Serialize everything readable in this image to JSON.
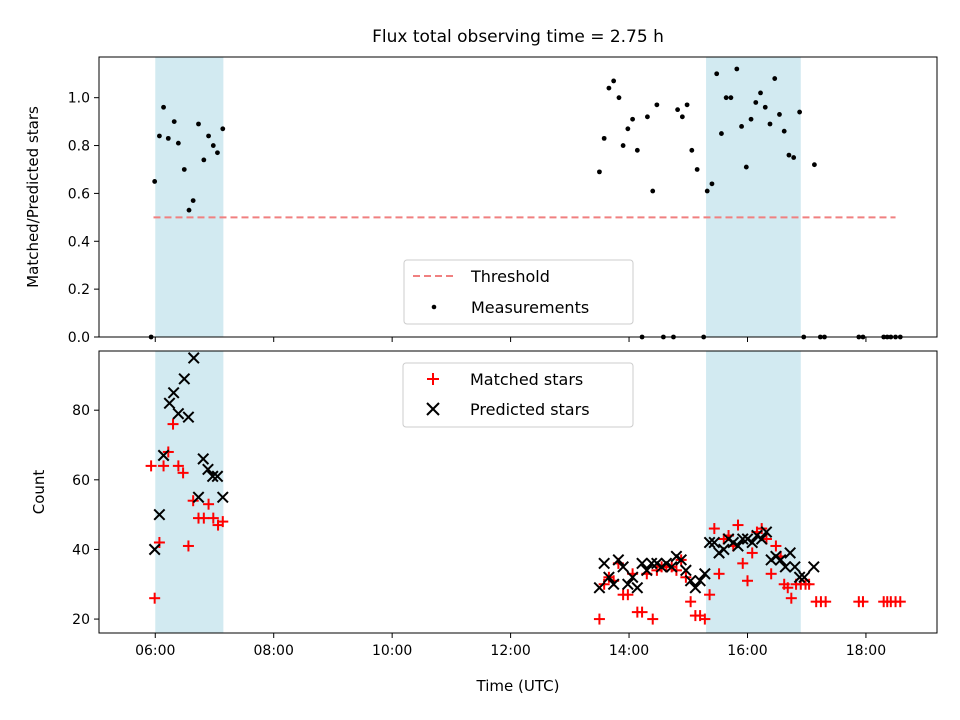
{
  "chart_data": {
    "title": "Flux total observing time = 2.75 h",
    "type": "scatter",
    "x_unit": "hours (UTC)",
    "xlim": [
      5.05,
      19.2
    ],
    "xlabel": "Time (UTC)",
    "x_ticks": [
      {
        "value": 6,
        "label": "06:00"
      },
      {
        "value": 8,
        "label": "08:00"
      },
      {
        "value": 10,
        "label": "10:00"
      },
      {
        "value": 12,
        "label": "12:00"
      },
      {
        "value": 14,
        "label": "14:00"
      },
      {
        "value": 16,
        "label": "16:00"
      },
      {
        "value": 18,
        "label": "18:00"
      }
    ],
    "spans": [
      [
        6.0,
        7.15
      ],
      [
        15.3,
        16.9
      ]
    ],
    "span_color": "#add8e6",
    "top": {
      "ylabel": "Matched/Predicted stars",
      "ylim": [
        0,
        1.17
      ],
      "y_ticks": [
        {
          "value": 0.0,
          "label": "0.0"
        },
        {
          "value": 0.2,
          "label": "0.2"
        },
        {
          "value": 0.4,
          "label": "0.4"
        },
        {
          "value": 0.6,
          "label": "0.6"
        },
        {
          "value": 0.8,
          "label": "0.8"
        },
        {
          "value": 1.0,
          "label": "1.0"
        }
      ],
      "threshold": {
        "name": "Threshold",
        "value": 0.5,
        "x_range": [
          5.97,
          18.5
        ],
        "color": "#f08080"
      },
      "measurements": {
        "name": "Measurements",
        "color": "#000000",
        "points": [
          [
            5.93,
            0.0
          ],
          [
            5.99,
            0.65
          ],
          [
            6.07,
            0.84
          ],
          [
            6.14,
            0.96
          ],
          [
            6.22,
            0.83
          ],
          [
            6.32,
            0.9
          ],
          [
            6.39,
            0.81
          ],
          [
            6.49,
            0.7
          ],
          [
            6.57,
            0.53
          ],
          [
            6.64,
            0.57
          ],
          [
            6.73,
            0.89
          ],
          [
            6.82,
            0.74
          ],
          [
            6.9,
            0.84
          ],
          [
            6.98,
            0.8
          ],
          [
            7.05,
            0.77
          ],
          [
            7.14,
            0.87
          ],
          [
            13.5,
            0.69
          ],
          [
            13.58,
            0.83
          ],
          [
            13.66,
            1.04
          ],
          [
            13.74,
            1.07
          ],
          [
            13.83,
            1.0
          ],
          [
            13.9,
            0.8
          ],
          [
            13.98,
            0.87
          ],
          [
            14.06,
            0.91
          ],
          [
            14.14,
            0.78
          ],
          [
            14.22,
            0.0
          ],
          [
            14.31,
            0.92
          ],
          [
            14.4,
            0.61
          ],
          [
            14.47,
            0.97
          ],
          [
            14.58,
            0.0
          ],
          [
            14.75,
            0.0
          ],
          [
            14.82,
            0.95
          ],
          [
            14.9,
            0.92
          ],
          [
            14.98,
            0.97
          ],
          [
            15.06,
            0.78
          ],
          [
            15.15,
            0.7
          ],
          [
            15.26,
            0.0
          ],
          [
            15.32,
            0.61
          ],
          [
            15.4,
            0.64
          ],
          [
            15.48,
            1.1
          ],
          [
            15.56,
            0.85
          ],
          [
            15.64,
            1.0
          ],
          [
            15.72,
            1.0
          ],
          [
            15.82,
            1.12
          ],
          [
            15.9,
            0.88
          ],
          [
            15.98,
            0.71
          ],
          [
            16.06,
            0.91
          ],
          [
            16.14,
            0.98
          ],
          [
            16.22,
            1.02
          ],
          [
            16.3,
            0.96
          ],
          [
            16.38,
            0.89
          ],
          [
            16.46,
            1.08
          ],
          [
            16.54,
            0.93
          ],
          [
            16.62,
            0.86
          ],
          [
            16.7,
            0.76
          ],
          [
            16.78,
            0.75
          ],
          [
            16.88,
            0.94
          ],
          [
            16.95,
            0.0
          ],
          [
            17.13,
            0.72
          ],
          [
            17.23,
            0.0
          ],
          [
            17.3,
            0.0
          ],
          [
            17.88,
            0.0
          ],
          [
            17.95,
            0.0
          ],
          [
            18.3,
            0.0
          ],
          [
            18.36,
            0.0
          ],
          [
            18.42,
            0.0
          ],
          [
            18.5,
            0.0
          ],
          [
            18.58,
            0.0
          ]
        ]
      },
      "legend_position": "lower-center"
    },
    "bottom": {
      "ylabel": "Count",
      "ylim": [
        16,
        97
      ],
      "y_ticks": [
        {
          "value": 20,
          "label": "20"
        },
        {
          "value": 40,
          "label": "40"
        },
        {
          "value": 60,
          "label": "60"
        },
        {
          "value": 80,
          "label": "80"
        }
      ],
      "matched": {
        "name": "Matched stars",
        "color": "#ff0000",
        "points": [
          [
            5.93,
            64
          ],
          [
            5.99,
            26
          ],
          [
            6.07,
            42
          ],
          [
            6.14,
            64
          ],
          [
            6.22,
            68
          ],
          [
            6.3,
            76
          ],
          [
            6.39,
            64
          ],
          [
            6.47,
            62
          ],
          [
            6.56,
            41
          ],
          [
            6.64,
            54
          ],
          [
            6.73,
            49
          ],
          [
            6.82,
            49
          ],
          [
            6.9,
            53
          ],
          [
            6.98,
            49
          ],
          [
            7.06,
            47
          ],
          [
            7.14,
            48
          ],
          [
            13.5,
            20
          ],
          [
            13.58,
            30
          ],
          [
            13.66,
            32
          ],
          [
            13.74,
            31
          ],
          [
            13.82,
            36
          ],
          [
            13.9,
            27
          ],
          [
            13.98,
            27
          ],
          [
            14.06,
            33
          ],
          [
            14.14,
            22
          ],
          [
            14.22,
            22
          ],
          [
            14.3,
            33
          ],
          [
            14.4,
            20
          ],
          [
            14.47,
            34
          ],
          [
            14.55,
            35
          ],
          [
            14.63,
            35
          ],
          [
            14.72,
            35
          ],
          [
            14.8,
            34
          ],
          [
            14.88,
            37
          ],
          [
            14.96,
            32
          ],
          [
            15.04,
            25
          ],
          [
            15.12,
            21
          ],
          [
            15.2,
            21
          ],
          [
            15.28,
            20
          ],
          [
            15.36,
            27
          ],
          [
            15.44,
            46
          ],
          [
            15.52,
            33
          ],
          [
            15.6,
            43
          ],
          [
            15.68,
            44
          ],
          [
            15.76,
            41
          ],
          [
            15.84,
            47
          ],
          [
            15.92,
            36
          ],
          [
            16.0,
            31
          ],
          [
            16.08,
            39
          ],
          [
            16.16,
            45
          ],
          [
            16.24,
            46
          ],
          [
            16.32,
            43
          ],
          [
            16.4,
            33
          ],
          [
            16.48,
            41
          ],
          [
            16.56,
            38
          ],
          [
            16.62,
            30
          ],
          [
            16.68,
            29
          ],
          [
            16.74,
            26
          ],
          [
            16.82,
            30
          ],
          [
            16.9,
            30
          ],
          [
            16.98,
            30
          ],
          [
            17.04,
            30
          ],
          [
            17.16,
            25
          ],
          [
            17.24,
            25
          ],
          [
            17.32,
            25
          ],
          [
            17.88,
            25
          ],
          [
            17.95,
            25
          ],
          [
            18.3,
            25
          ],
          [
            18.36,
            25
          ],
          [
            18.42,
            25
          ],
          [
            18.5,
            25
          ],
          [
            18.58,
            25
          ]
        ]
      },
      "predicted": {
        "name": "Predicted stars",
        "color": "#000000",
        "points": [
          [
            5.99,
            40
          ],
          [
            6.07,
            50
          ],
          [
            6.14,
            67
          ],
          [
            6.24,
            82
          ],
          [
            6.31,
            85
          ],
          [
            6.39,
            79
          ],
          [
            6.49,
            89
          ],
          [
            6.56,
            78
          ],
          [
            6.65,
            95
          ],
          [
            6.73,
            55
          ],
          [
            6.81,
            66
          ],
          [
            6.89,
            63
          ],
          [
            6.97,
            61
          ],
          [
            7.05,
            61
          ],
          [
            7.14,
            55
          ],
          [
            13.5,
            29
          ],
          [
            13.58,
            36
          ],
          [
            13.66,
            32
          ],
          [
            13.74,
            30
          ],
          [
            13.82,
            37
          ],
          [
            13.9,
            35
          ],
          [
            13.98,
            30
          ],
          [
            14.06,
            32
          ],
          [
            14.14,
            29
          ],
          [
            14.22,
            36
          ],
          [
            14.3,
            34
          ],
          [
            14.38,
            36
          ],
          [
            14.47,
            36
          ],
          [
            14.55,
            35
          ],
          [
            14.63,
            36
          ],
          [
            14.72,
            35
          ],
          [
            14.8,
            38
          ],
          [
            14.88,
            37
          ],
          [
            14.96,
            34
          ],
          [
            15.04,
            31
          ],
          [
            15.12,
            29
          ],
          [
            15.2,
            31
          ],
          [
            15.28,
            33
          ],
          [
            15.36,
            42
          ],
          [
            15.44,
            42
          ],
          [
            15.52,
            39
          ],
          [
            15.6,
            40
          ],
          [
            15.68,
            43
          ],
          [
            15.76,
            42
          ],
          [
            15.84,
            41
          ],
          [
            15.92,
            43
          ],
          [
            16.0,
            43
          ],
          [
            16.08,
            42
          ],
          [
            16.16,
            44
          ],
          [
            16.24,
            43
          ],
          [
            16.32,
            45
          ],
          [
            16.4,
            37
          ],
          [
            16.48,
            38
          ],
          [
            16.56,
            37
          ],
          [
            16.64,
            35
          ],
          [
            16.72,
            39
          ],
          [
            16.8,
            35
          ],
          [
            16.88,
            32
          ],
          [
            16.96,
            32
          ],
          [
            17.12,
            35
          ]
        ]
      },
      "legend_position": "upper-center"
    }
  }
}
